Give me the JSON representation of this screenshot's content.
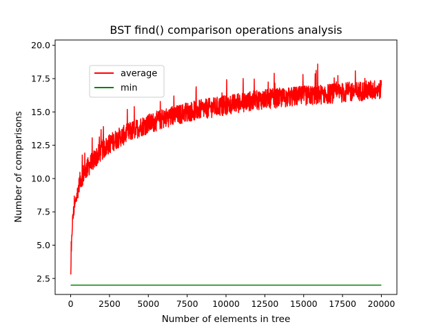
{
  "chart_data": {
    "type": "line",
    "title": "BST find() comparison operations analysis",
    "xlabel": "Number of elements in tree",
    "ylabel": "Number of comparisons",
    "xlim": [
      -1000,
      21000
    ],
    "ylim": [
      1.3,
      20.4
    ],
    "xticks": [
      0,
      2500,
      5000,
      7500,
      10000,
      12500,
      15000,
      17500,
      20000
    ],
    "yticks": [
      2.5,
      5.0,
      7.5,
      10.0,
      12.5,
      15.0,
      17.5,
      20.0
    ],
    "xtick_labels": [
      "0",
      "2500",
      "5000",
      "7500",
      "10000",
      "12500",
      "15000",
      "17500",
      "20000"
    ],
    "ytick_labels": [
      "2.5",
      "5.0",
      "7.5",
      "10.0",
      "12.5",
      "15.0",
      "17.5",
      "20.0"
    ],
    "grid": false,
    "legend_position": "upper-left",
    "series": [
      {
        "name": "average",
        "color": "#ff0000",
        "x": [
          10,
          100,
          200,
          400,
          600,
          800,
          1000,
          1500,
          2000,
          2500,
          3000,
          3500,
          4000,
          4500,
          5000,
          5500,
          6000,
          6500,
          7000,
          7500,
          8000,
          8500,
          9000,
          9500,
          10000,
          10500,
          11000,
          11500,
          12000,
          12500,
          13000,
          13500,
          14000,
          14500,
          15000,
          15500,
          16000,
          16500,
          17000,
          17500,
          18000,
          18500,
          19000,
          19500,
          20000
        ],
        "values": [
          2.8,
          6.5,
          7.6,
          8.7,
          9.9,
          10.3,
          10.7,
          11.4,
          12.1,
          12.6,
          13.0,
          13.3,
          13.6,
          13.9,
          14.1,
          14.3,
          14.5,
          14.7,
          14.8,
          15.0,
          15.1,
          15.2,
          15.3,
          15.4,
          15.5,
          15.6,
          15.7,
          15.8,
          15.9,
          15.95,
          16.0,
          16.05,
          16.1,
          16.15,
          16.2,
          16.25,
          16.3,
          16.35,
          16.4,
          16.45,
          16.5,
          16.55,
          16.6,
          16.65,
          16.7
        ]
      },
      {
        "name": "min",
        "color": "#008000",
        "x": [
          0,
          20000
        ],
        "values": [
          2.0,
          2.0
        ]
      }
    ]
  }
}
